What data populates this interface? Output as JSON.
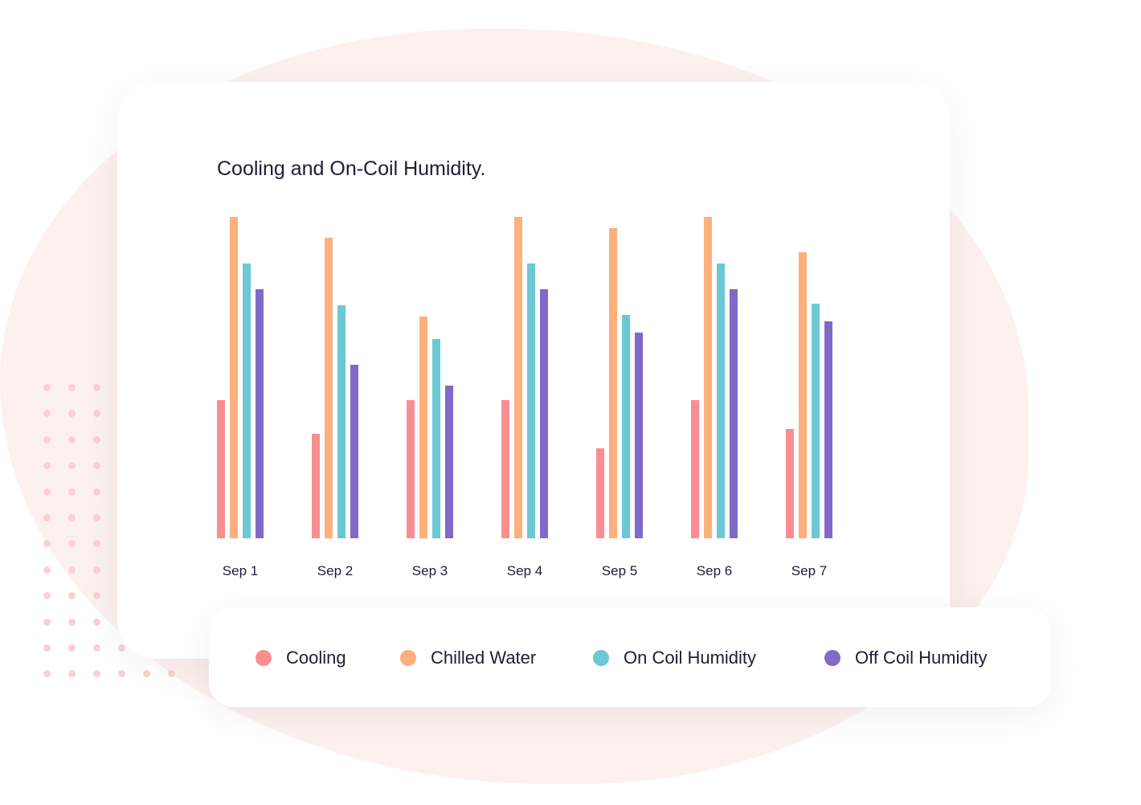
{
  "chart_data": {
    "type": "bar",
    "title": "Cooling and On-Coil Humidity.",
    "categories": [
      "Sep 1",
      "Sep 2",
      "Sep 3",
      "Sep 4",
      "Sep 5",
      "Sep 6",
      "Sep 7"
    ],
    "series": [
      {
        "name": "Cooling",
        "color": "#f98e92",
        "values": [
          172,
          130,
          172,
          172,
          112,
          172,
          136
        ]
      },
      {
        "name": "Chilled Water",
        "color": "#fdb07c",
        "values": [
          400,
          374,
          276,
          400,
          386,
          400,
          356
        ]
      },
      {
        "name": "On Coil Humidity",
        "color": "#6cc8d3",
        "values": [
          342,
          290,
          248,
          342,
          278,
          342,
          292
        ]
      },
      {
        "name": "Off Coil Humidity",
        "color": "#8069c9",
        "values": [
          310,
          216,
          190,
          310,
          256,
          310,
          270
        ]
      }
    ],
    "ylim": [
      0,
      400
    ],
    "grid": false,
    "legend_placement": "bottom"
  }
}
